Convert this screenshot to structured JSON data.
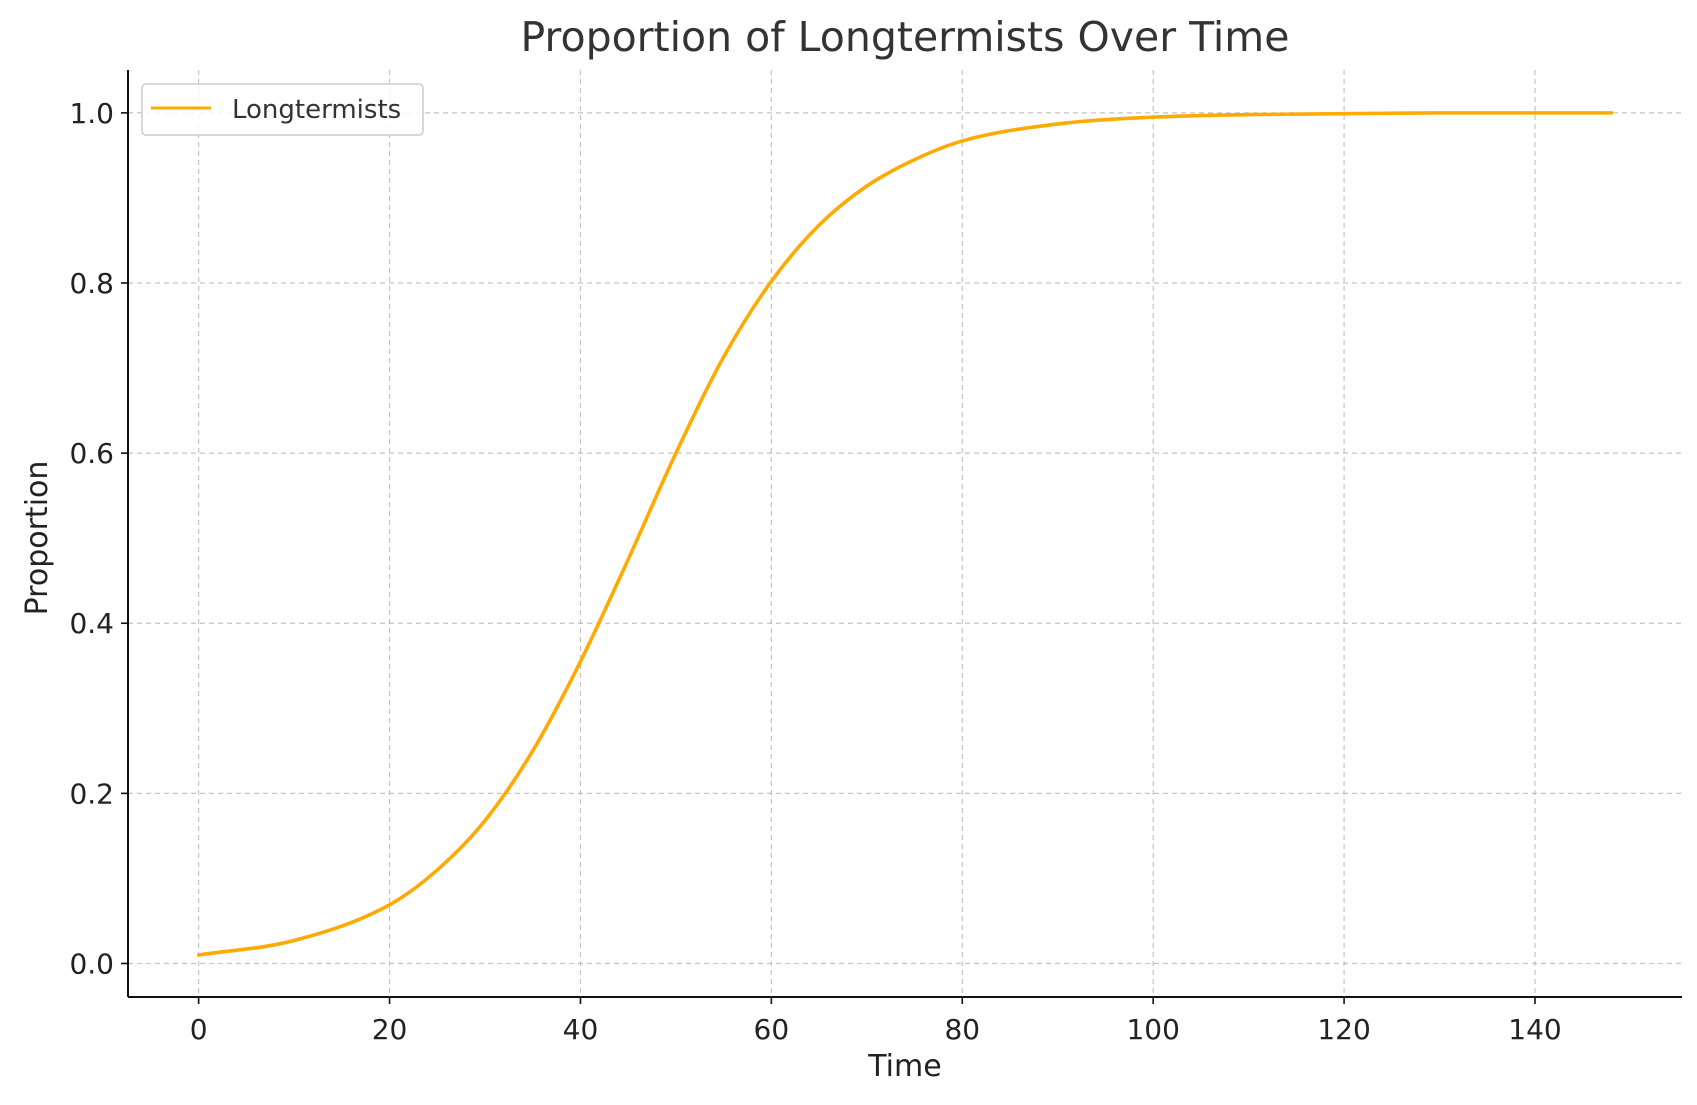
{
  "chart_data": {
    "type": "line",
    "title": "Proportion of Longtermists Over Time",
    "xlabel": "Time",
    "ylabel": "Proportion",
    "xlim": [
      -7.4,
      155.4
    ],
    "ylim": [
      -0.0394,
      1.0504
    ],
    "xticks": [
      0,
      20,
      40,
      60,
      80,
      100,
      120,
      140
    ],
    "xtick_labels": [
      "0",
      "20",
      "40",
      "60",
      "80",
      "100",
      "120",
      "140"
    ],
    "yticks": [
      0.0,
      0.2,
      0.4,
      0.6,
      0.8,
      1.0
    ],
    "ytick_labels": [
      "0.0",
      "0.2",
      "0.4",
      "0.6",
      "0.8",
      "1.0"
    ],
    "grid": true,
    "legend_position": "top-left",
    "series": [
      {
        "name": "Longtermists",
        "color": "#ffaa00",
        "x": [
          0,
          10,
          20,
          25,
          30,
          35,
          40,
          45,
          50,
          55,
          60,
          65,
          70,
          75,
          80,
          90,
          100,
          110,
          120,
          130,
          140,
          148
        ],
        "y": [
          0.01,
          0.027,
          0.069,
          0.11,
          0.168,
          0.25,
          0.355,
          0.475,
          0.6,
          0.713,
          0.802,
          0.868,
          0.914,
          0.945,
          0.967,
          0.987,
          0.995,
          0.998,
          0.999,
          1.0,
          1.0,
          1.0
        ]
      }
    ]
  }
}
